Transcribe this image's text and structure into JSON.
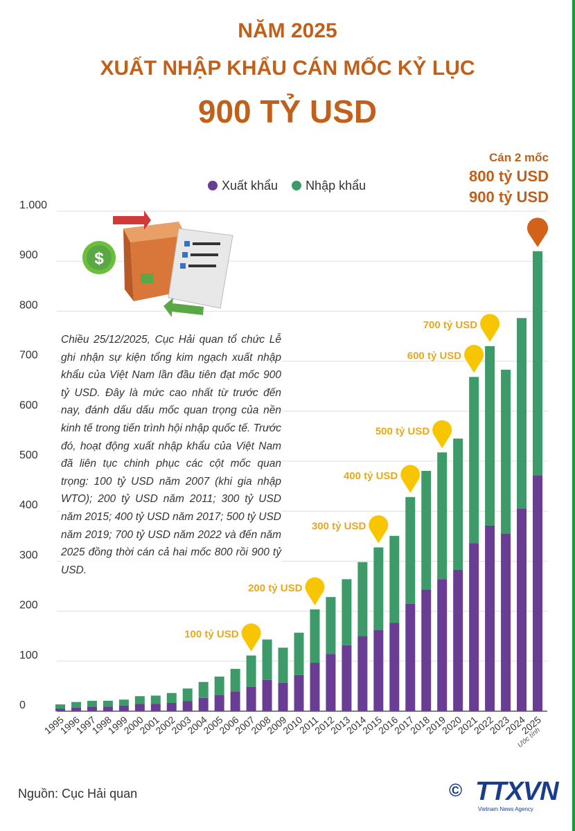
{
  "header": {
    "line1": "NĂM 2025",
    "line2": "XUẤT NHẬP KHẨU CÁN MỐC KỶ LỤC",
    "line3": "900 TỶ USD"
  },
  "legend": {
    "export": "Xuất khẩu",
    "import": "Nhập khẩu"
  },
  "colors": {
    "export": "#6a3d94",
    "import": "#3d9a69",
    "title": "#c0601a",
    "pin": "#f7c600",
    "pin_label": "#e7a81c",
    "pin_final": "#d2621a",
    "grid": "#dddddd"
  },
  "paragraph": "Chiều 25/12/2025, Cục Hải quan tổ chức Lễ ghi nhận sự kiện tổng kim ngạch xuất nhập khẩu của Việt Nam lần đầu tiên đạt mốc 900 tỷ USD. Đây là mức cao nhất từ trước đến nay, đánh dấu dấu mốc quan trọng của nền kinh tế trong tiến trình hội nhập quốc tế. Trước đó, hoạt động xuất nhập khẩu của Việt Nam đã liên tục chinh phục các cột mốc quan trọng: 100 tỷ USD năm 2007 (khi gia nhập WTO); 200 tỷ USD năm 2011; 300 tỷ USD năm 2015; 400 tỷ USD năm 2017; 500 tỷ USD năm 2019; 700 tỷ USD năm 2022 và đến năm 2025 đồng thời cán cả hai mốc 800 rồi 900 tỷ USD.",
  "final_callout": {
    "line1": "Cán 2 mốc",
    "line2": "800 tỷ USD",
    "line3": "900 tỷ USD"
  },
  "estimate_note": "Ước tính",
  "source": "Nguồn: Cục Hải quan",
  "logo": {
    "name": "TTXVN",
    "sub": "Vietnam News Agency",
    "copyright": "©"
  },
  "chart_data": {
    "type": "bar",
    "stacked": true,
    "title": "",
    "xlabel": "",
    "ylabel": "",
    "ylim": [
      0,
      1000
    ],
    "yticks": [
      0,
      100,
      200,
      300,
      400,
      500,
      600,
      700,
      800,
      900,
      1000
    ],
    "ytick_labels": [
      "0",
      "100",
      "200",
      "300",
      "400",
      "500",
      "600",
      "700",
      "800",
      "900",
      "1.000"
    ],
    "grid": true,
    "legend_position": "top",
    "categories": [
      "1995",
      "1996",
      "1997",
      "1998",
      "1999",
      "2000",
      "2001",
      "2002",
      "2003",
      "2004",
      "2005",
      "2006",
      "2007",
      "2008",
      "2009",
      "2010",
      "2011",
      "2012",
      "2013",
      "2014",
      "2015",
      "2016",
      "2017",
      "2018",
      "2019",
      "2020",
      "2021",
      "2022",
      "2023",
      "2024",
      "2025"
    ],
    "series": [
      {
        "name": "Xuất khẩu",
        "values": [
          5.4,
          7.3,
          9.2,
          9.4,
          11.5,
          14.5,
          15.0,
          16.7,
          20.1,
          26.5,
          32.4,
          39.8,
          48.6,
          62.7,
          57.1,
          72.2,
          96.9,
          114.5,
          132.0,
          150.2,
          162.0,
          176.6,
          215.1,
          243.5,
          264.2,
          282.6,
          336.3,
          371.3,
          355.5,
          405.5,
          472
        ]
      },
      {
        "name": "Nhập khẩu",
        "values": [
          8.2,
          11.1,
          11.6,
          11.5,
          11.7,
          15.6,
          16.2,
          19.7,
          25.3,
          32.0,
          36.8,
          44.9,
          62.8,
          80.7,
          69.9,
          84.8,
          106.7,
          113.8,
          132.0,
          148.0,
          165.6,
          174.1,
          213.2,
          237.2,
          253.4,
          262.7,
          332.2,
          358.9,
          327.5,
          380.8,
          448
        ]
      }
    ],
    "annotations": [
      {
        "year": "2007",
        "label": "100 tỷ USD"
      },
      {
        "year": "2011",
        "label": "200 tỷ USD"
      },
      {
        "year": "2015",
        "label": "300 tỷ USD"
      },
      {
        "year": "2017",
        "label": "400 tỷ USD"
      },
      {
        "year": "2019",
        "label": "500 tỷ USD"
      },
      {
        "year": "2021",
        "label": "600 tỷ USD"
      },
      {
        "year": "2022",
        "label": "700 tỷ USD"
      },
      {
        "year": "2025",
        "label": ""
      }
    ]
  }
}
